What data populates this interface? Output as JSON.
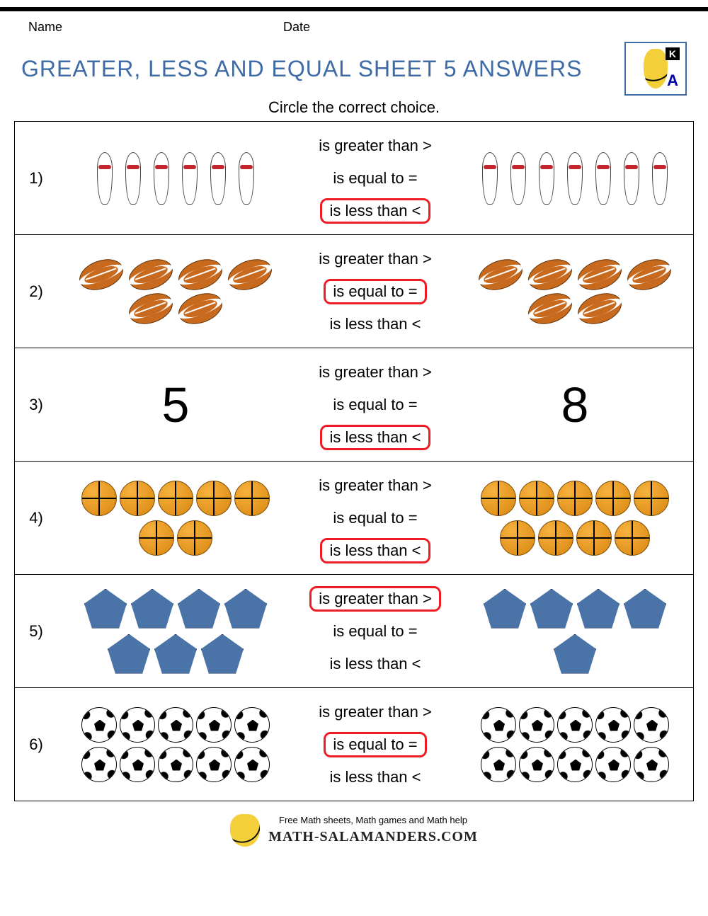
{
  "header": {
    "name_label": "Name",
    "date_label": "Date",
    "title": "GREATER, LESS AND EQUAL SHEET 5 ANSWERS",
    "instruction": "Circle the correct choice.",
    "grade_badge": "K"
  },
  "choices": {
    "greater": "is greater than >",
    "equal": "is equal to =",
    "less": "is less than <"
  },
  "rows": [
    {
      "n": "1)",
      "left_type": "pin",
      "left_count": 6,
      "right_type": "pin",
      "right_count": 7,
      "answer": "less"
    },
    {
      "n": "2)",
      "left_type": "football",
      "left_count": 6,
      "right_type": "football",
      "right_count": 6,
      "answer": "equal"
    },
    {
      "n": "3)",
      "left_type": "number",
      "left_value": "5",
      "right_type": "number",
      "right_value": "8",
      "answer": "less"
    },
    {
      "n": "4)",
      "left_type": "basketball",
      "left_count": 7,
      "right_type": "basketball",
      "right_count": 9,
      "answer": "less"
    },
    {
      "n": "5)",
      "left_type": "pentagon",
      "left_count": 7,
      "right_type": "pentagon",
      "right_count": 5,
      "answer": "greater"
    },
    {
      "n": "6)",
      "left_type": "soccer",
      "left_count": 10,
      "right_type": "soccer",
      "right_count": 10,
      "answer": "equal"
    }
  ],
  "footer": {
    "tagline": "Free Math sheets, Math games and Math help",
    "site": "MATH-SALAMANDERS.COM"
  },
  "colors": {
    "title": "#3e6ba5",
    "answer_ring": "#ee1c25",
    "pentagon": "#4a74a7",
    "football": "#c86a1d",
    "basketball": "#e79a1f"
  }
}
